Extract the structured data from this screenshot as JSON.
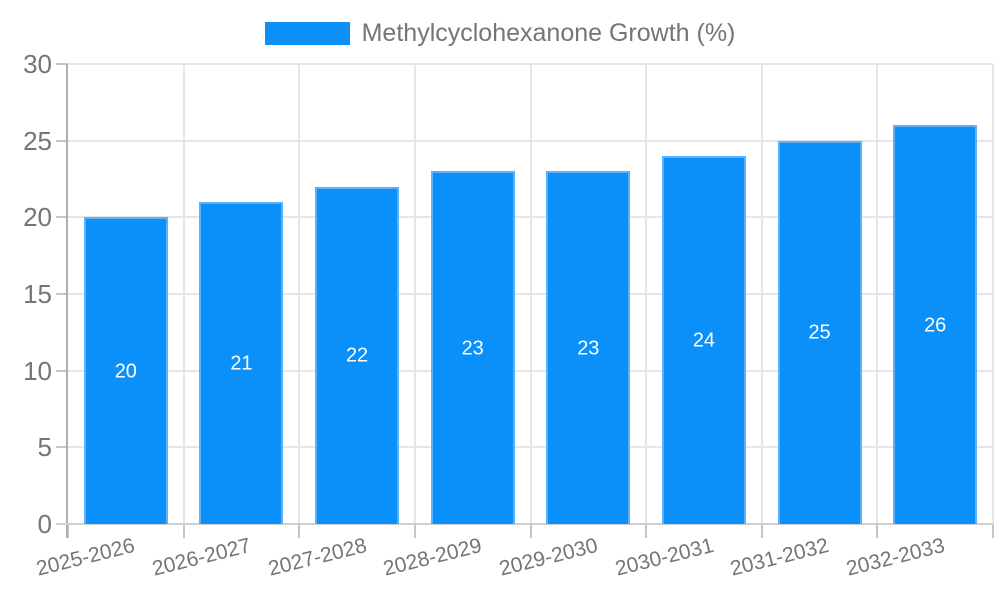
{
  "chart_data": {
    "type": "bar",
    "title": "Methylcyclohexanone Growth (%)",
    "categories": [
      "2025-2026",
      "2026-2027",
      "2027-2028",
      "2028-2029",
      "2029-2030",
      "2030-2031",
      "2031-2032",
      "2032-2033"
    ],
    "values": [
      20,
      21,
      22,
      23,
      23,
      24,
      25,
      26
    ],
    "yticks": [
      0,
      5,
      10,
      15,
      20,
      25,
      30
    ],
    "ylim": [
      0,
      30
    ],
    "xlabel": "",
    "ylabel": "",
    "legend_position": "top",
    "grid": true,
    "value_labels_inside_bars": true,
    "colors": {
      "bar": "#0b90f9",
      "bar_border": "#5db1fb",
      "grid": "#e6e6e6",
      "axis_y": "#b0b0b0",
      "axis_x": "#d0d0d0",
      "tick": "#c6c6c6",
      "text": "#757575",
      "value_label": "#ffffff",
      "background": "#ffffff"
    }
  }
}
